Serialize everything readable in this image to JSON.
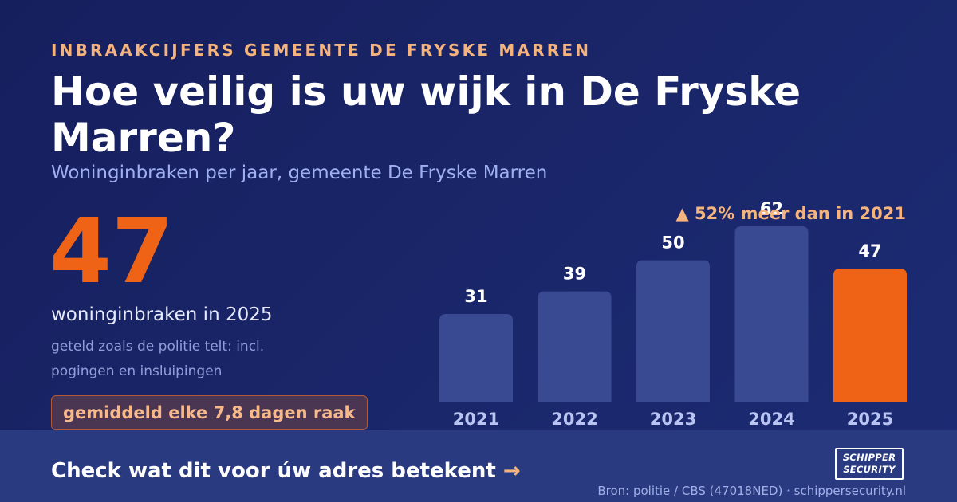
{
  "header": {
    "eyebrow": "INBRAAKCIJFERS GEMEENTE DE FRYSKE MARREN",
    "title": "Hoe veilig is uw wijk in De Fryske Marren?",
    "subtitle": "Woninginbraken per jaar, gemeente De Fryske Marren"
  },
  "highlight": {
    "number": "47",
    "caption": "woninginbraken in 2025",
    "note": "geteld zoals de politie telt: incl. pogingen en insluipingen",
    "badge": "gemiddeld elke 7,8 dagen raak"
  },
  "colors": {
    "background": "#1a2669",
    "bar": "#3a4a92",
    "bar_highlight": "#ef6317",
    "accent": "#f5b37d"
  },
  "chart_data": {
    "type": "bar",
    "title": "",
    "xlabel": "",
    "ylabel": "",
    "categories": [
      "2021",
      "2022",
      "2023",
      "2024",
      "2025"
    ],
    "values": [
      31,
      39,
      50,
      62,
      47
    ],
    "highlighted_category": "2025",
    "ylim": [
      0,
      62
    ],
    "grid": false,
    "annotation": "▲ 52% meer dan in 2021"
  },
  "footer": {
    "cta_text": "Check wat dit voor úw adres betekent",
    "cta_arrow": "→",
    "logo_line1": "SCHIPPER",
    "logo_line2": "SECURITY",
    "source": "Bron: politie / CBS (47018NED) · schippersecurity.nl"
  }
}
